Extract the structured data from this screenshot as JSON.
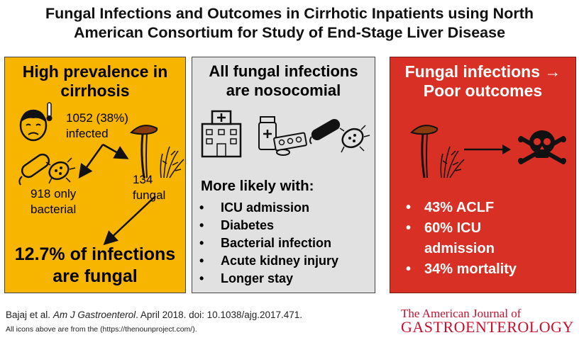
{
  "title": {
    "line1": "Fungal Infections and Outcomes in Cirrhotic Inpatients using North",
    "line2": "American Consortium for Study of End-Stage Liver Disease"
  },
  "panel1": {
    "heading1": "High prevalence in",
    "heading2": "cirrhosis",
    "infected_count": "1052 (38%)",
    "infected_label": "infected",
    "bacterial_count": "918 only",
    "bacterial_label": "bacterial",
    "fungal_count": "134",
    "fungal_label": "fungal",
    "conclusion1": "12.7% of infections",
    "conclusion2": "are fungal"
  },
  "panel2": {
    "heading1": "All fungal infections",
    "heading2": "are nosocomial",
    "subheading": "More likely with:",
    "bullet": "•",
    "items": [
      "ICU admission",
      "Diabetes",
      "Bacterial infection",
      "Acute kidney injury",
      "Longer stay"
    ]
  },
  "panel3": {
    "heading1": "Fungal infections →",
    "heading2": "Poor outcomes",
    "bullet": "•",
    "items": [
      "43% ACLF",
      "60% ICU",
      "admission",
      "34% mortality"
    ]
  },
  "citation": {
    "authors": "Bajaj et al.",
    "journal": "Am J Gastroenterol",
    "rest": ". April 2018. doi: 10.1038/ajg.2017.471."
  },
  "icons_note": "All icons above are from the (https://thenounproject.com/).",
  "logo": {
    "line1": "The American Journal of",
    "line2": "GASTROENTEROLOGY"
  },
  "colors": {
    "panel1_bg": "#f7b500",
    "panel2_bg": "#e1e1e1",
    "panel3_bg": "#d93025",
    "logo_red": "#c8102e"
  }
}
